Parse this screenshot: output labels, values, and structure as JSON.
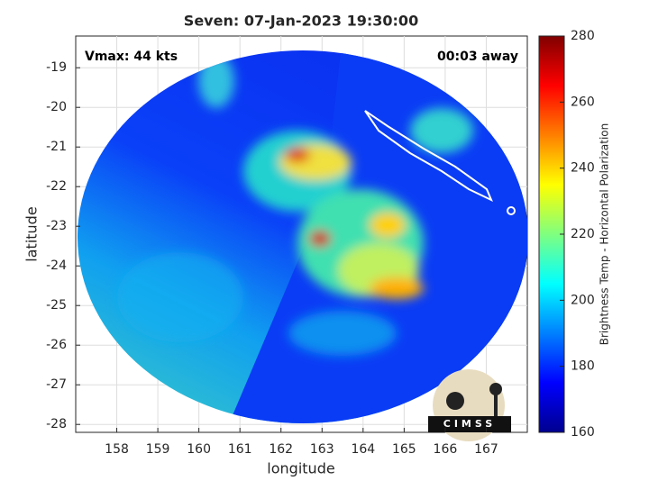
{
  "chart_data": {
    "type": "image",
    "title": "Seven: 07-Jan-2023 19:30:00",
    "xlabel": "longitude",
    "ylabel": "latitude",
    "xlim": [
      157.0,
      168.0
    ],
    "ylim": [
      -28.2,
      -18.2
    ],
    "xticks": [
      158,
      159,
      160,
      161,
      162,
      163,
      164,
      165,
      166,
      167
    ],
    "yticks": [
      -28,
      -27,
      -26,
      -25,
      -24,
      -23,
      -22,
      -21,
      -20,
      -19
    ],
    "grid": true,
    "annotations": [
      "Vmax: 44 kts",
      "00:03 away"
    ],
    "colorbar": {
      "label": "Brightness Temp - Horizontal Polarization",
      "lim": [
        160,
        280
      ],
      "ticks": [
        160,
        180,
        200,
        220,
        240,
        260,
        280
      ],
      "colormap": "jet"
    }
  },
  "logo": {
    "text": "CIMSS"
  }
}
